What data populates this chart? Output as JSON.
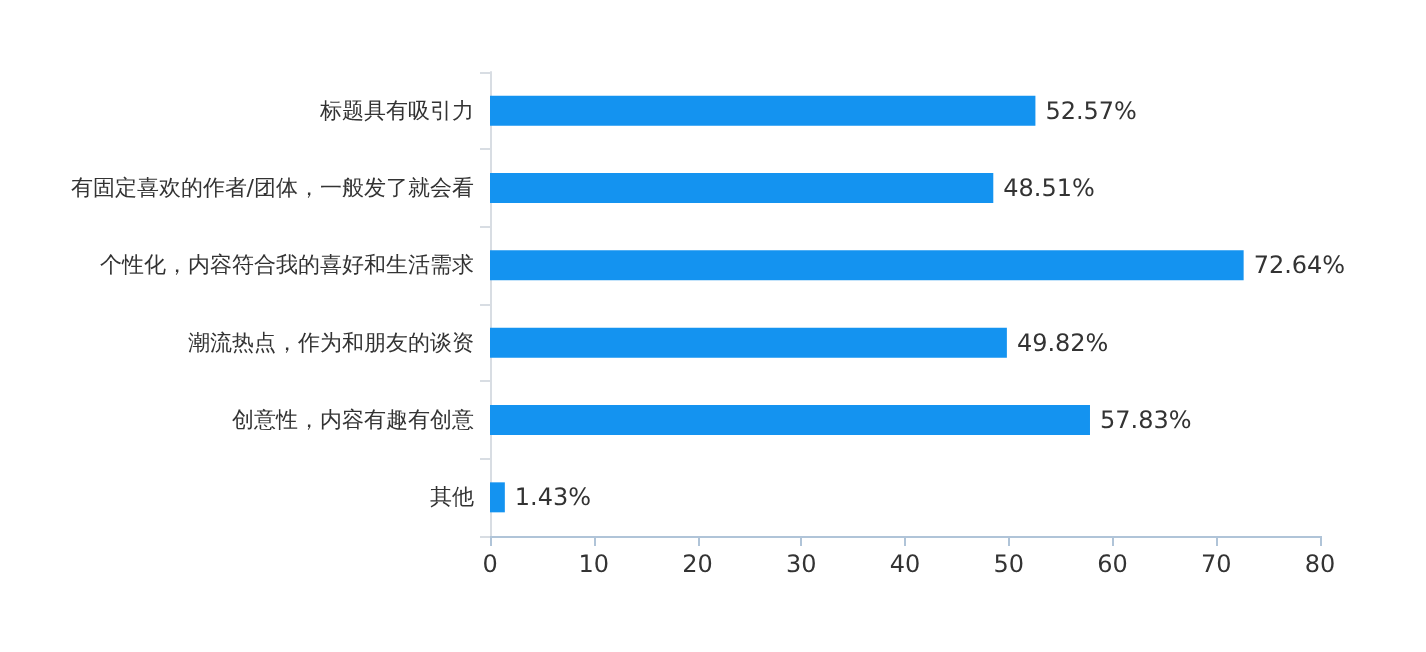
{
  "chart_data": {
    "type": "bar",
    "orientation": "horizontal",
    "categories": [
      "标题具有吸引力",
      "有固定喜欢的作者/团体，一般发了就会看",
      "个性化，内容符合我的喜好和生活需求",
      "潮流热点，作为和朋友的谈资",
      "创意性，内容有趣有创意",
      "其他"
    ],
    "values": [
      52.57,
      48.51,
      72.64,
      49.82,
      57.83,
      1.43
    ],
    "value_labels": [
      "52.57%",
      "48.51%",
      "72.64%",
      "49.82%",
      "57.83%",
      "1.43%"
    ],
    "color": "#1493f0",
    "xlim": [
      0,
      80
    ],
    "xticks": [
      0,
      10,
      20,
      30,
      40,
      50,
      60,
      70,
      80
    ],
    "grid": false
  }
}
